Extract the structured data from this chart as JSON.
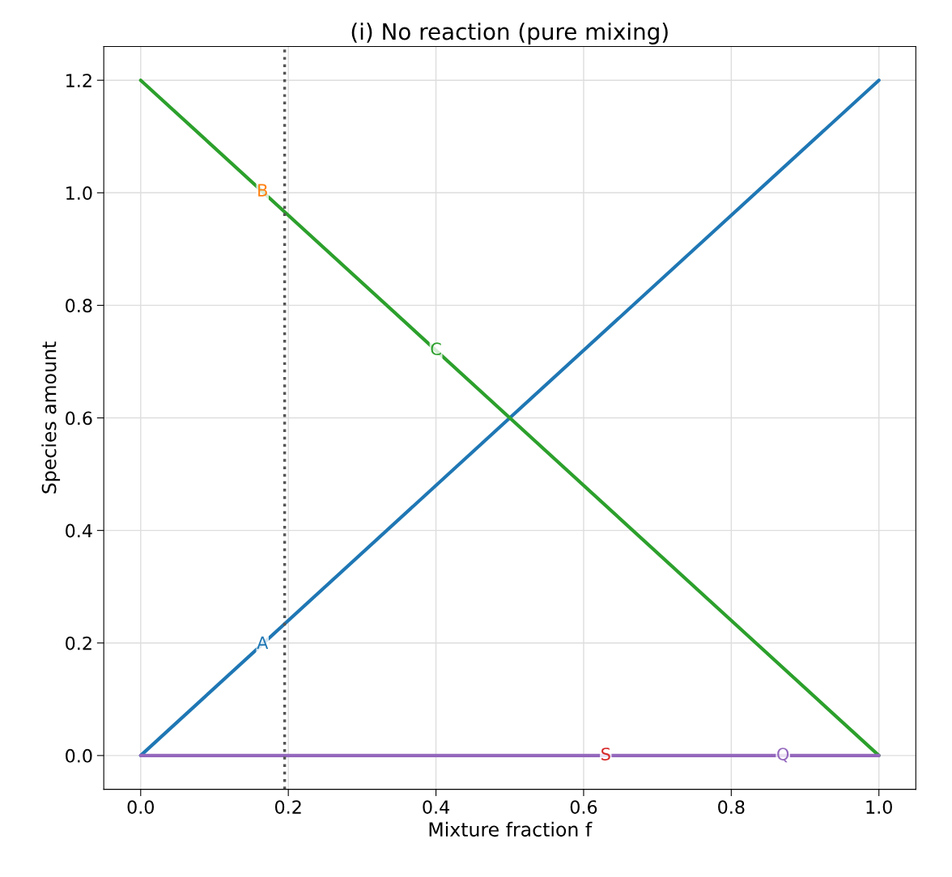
{
  "chart_data": {
    "type": "line",
    "title": "(i) No reaction (pure mixing)",
    "xlabel": "Mixture fraction f",
    "ylabel": "Species amount",
    "x": [
      0,
      1
    ],
    "series": [
      {
        "color": "#1f77b4",
        "values": [
          0,
          1.2
        ]
      },
      {
        "color": "#ff7f0e",
        "values": [
          null,
          null
        ]
      },
      {
        "color": "#2ca02c",
        "values": [
          1.2,
          0
        ]
      },
      {
        "color": "#d62728",
        "values": [
          null,
          null
        ]
      },
      {
        "color": "#9467bd",
        "values": [
          0,
          0
        ]
      }
    ],
    "annotations": [
      {
        "text": "A",
        "x": 0.165,
        "y": 0.198
      },
      {
        "text": "B",
        "x": 0.165,
        "y": 1.002
      },
      {
        "text": "C",
        "x": 0.4,
        "y": 0.72
      },
      {
        "text": "S",
        "x": 0.63,
        "y": 0
      },
      {
        "text": "Q",
        "x": 0.87,
        "y": 0
      }
    ],
    "xlim": [
      -0.05,
      1.05
    ],
    "xticks": [
      {
        "value": 0,
        "label": "0.0"
      },
      {
        "value": 0.2,
        "label": "0.2"
      },
      {
        "value": 0.4,
        "label": "0.4"
      },
      {
        "value": 0.6,
        "label": "0.6"
      },
      {
        "value": 0.8,
        "label": "0.8"
      },
      {
        "value": 1.0,
        "label": "1.0"
      }
    ],
    "ylim": [
      -0.06,
      1.26
    ],
    "yticks": [
      {
        "value": 0,
        "label": "0.0"
      },
      {
        "value": 0.2,
        "label": "0.2"
      },
      {
        "value": 0.4,
        "label": "0.4"
      },
      {
        "value": 0.6,
        "label": "0.6"
      },
      {
        "value": 0.8,
        "label": "0.8"
      },
      {
        "value": 1.0,
        "label": "1.0"
      },
      {
        "value": 1.2,
        "label": "1.2"
      }
    ],
    "ref_lines": [
      {
        "axis": "x",
        "value": 0.195,
        "color": "#555555",
        "line_style": "dotted"
      }
    ],
    "grid": true,
    "legend": false,
    "marker": "none",
    "line_style": "solid"
  }
}
